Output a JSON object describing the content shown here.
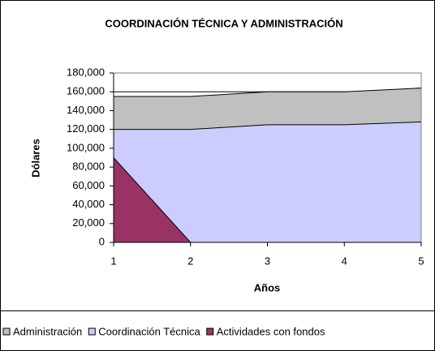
{
  "chart_data": {
    "type": "area",
    "title": "COORDINACIÓN TÉCNICA Y ADMINISTRACIÓN",
    "x_label": "Años",
    "y_label": "Dólares",
    "x": [
      1,
      2,
      3,
      4,
      5
    ],
    "xlim": [
      1,
      5
    ],
    "xticks": [
      1,
      2,
      3,
      4,
      5
    ],
    "ylim": [
      0,
      180000
    ],
    "yticks": [
      0,
      {
        "value": 20000,
        "label": "20,000"
      },
      {
        "value": 40000,
        "label": "40,000"
      },
      {
        "value": 60000,
        "label": "60,000"
      },
      {
        "value": 80000,
        "label": "80,000"
      },
      {
        "value": 100000,
        "label": "100,000"
      },
      {
        "value": 120000,
        "label": "120,000"
      },
      {
        "value": 140000,
        "label": "140,000"
      },
      {
        "value": 160000,
        "label": "160,000"
      },
      {
        "value": 180000,
        "label": "180,000"
      }
    ],
    "grid": true,
    "legend": "bottom",
    "series": [
      {
        "name": "Administración",
        "color": "#c0c0c0",
        "values": [
          155000,
          155000,
          160000,
          160000,
          164000
        ]
      },
      {
        "name": "Coordinación Técnica",
        "color": "#ccccff",
        "values": [
          120000,
          120000,
          125000,
          125000,
          128000
        ]
      },
      {
        "name": "Actividades con fondos",
        "color": "#993366",
        "values": [
          90000,
          0,
          0,
          0,
          0
        ]
      }
    ]
  }
}
